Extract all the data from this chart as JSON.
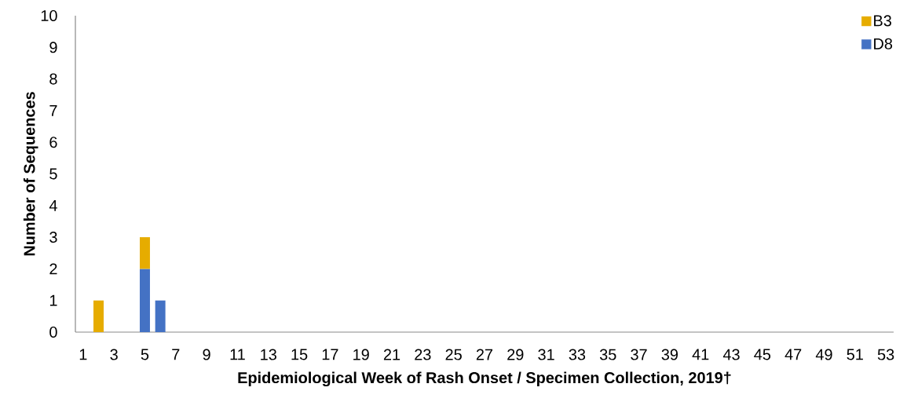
{
  "chart_data": {
    "type": "bar",
    "stacked": true,
    "xlabel": "Epidemiological Week of Rash Onset / Specimen Collection, 2019†",
    "ylabel": "Number of Sequences",
    "categories": [
      "1",
      null,
      "3",
      null,
      "5",
      null,
      "7",
      null,
      "9",
      null,
      "11",
      null,
      "13",
      null,
      "15",
      null,
      "17",
      null,
      "19",
      null,
      "21",
      null,
      "23",
      null,
      "25",
      null,
      "27",
      null,
      "29",
      null,
      "31",
      null,
      "33",
      null,
      "35",
      null,
      "37",
      null,
      "39",
      null,
      "41",
      null,
      "43",
      null,
      "45",
      null,
      "47",
      null,
      "49",
      null,
      "51",
      null,
      "53"
    ],
    "series": [
      {
        "name": "D8",
        "color": "#4472c4",
        "values": [
          0,
          0,
          0,
          0,
          2,
          1,
          0,
          0,
          0,
          0,
          0,
          0,
          0,
          0,
          0,
          0,
          0,
          0,
          0,
          0,
          0,
          0,
          0,
          0,
          0,
          0,
          0,
          0,
          0,
          0,
          0,
          0,
          0,
          0,
          0,
          0,
          0,
          0,
          0,
          0,
          0,
          0,
          0,
          0,
          0,
          0,
          0,
          0,
          0,
          0,
          0,
          0,
          0
        ]
      },
      {
        "name": "B3",
        "color": "#e6ac00",
        "values": [
          0,
          1,
          0,
          0,
          1,
          0,
          0,
          0,
          0,
          0,
          0,
          0,
          0,
          0,
          0,
          0,
          0,
          0,
          0,
          0,
          0,
          0,
          0,
          0,
          0,
          0,
          0,
          0,
          0,
          0,
          0,
          0,
          0,
          0,
          0,
          0,
          0,
          0,
          0,
          0,
          0,
          0,
          0,
          0,
          0,
          0,
          0,
          0,
          0,
          0,
          0,
          0,
          0
        ]
      }
    ],
    "ylim": [
      0,
      10
    ],
    "yticks": [
      0,
      1,
      2,
      3,
      4,
      5,
      6,
      7,
      8,
      9,
      10
    ],
    "legend": "top right"
  }
}
